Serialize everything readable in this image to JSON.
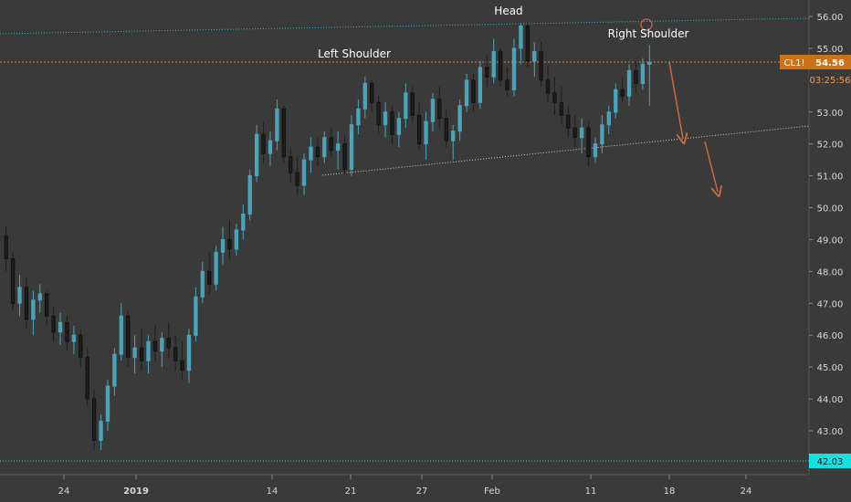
{
  "chart_data": {
    "type": "candlestick",
    "symbol_tag": "CL1!",
    "last_price": "54.56",
    "countdown": "03:25:56",
    "support_level": "42.03",
    "annotations": {
      "left_shoulder": "Left Shoulder",
      "head": "Head",
      "right_shoulder": "Right Shoulder"
    },
    "x_tick_labels": [
      "24",
      "2019",
      "14",
      "21",
      "27",
      "Feb",
      "11",
      "18",
      "24"
    ],
    "y_tick_labels": [
      "43.00",
      "44.00",
      "45.00",
      "46.00",
      "47.00",
      "48.00",
      "49.00",
      "50.00",
      "51.00",
      "52.00",
      "53.00",
      "54.00",
      "55.00",
      "56.00"
    ],
    "ylim": [
      41.9,
      56.5
    ],
    "grid": false,
    "colors": {
      "background": "#3a3a3a",
      "candle": "#4fa3b8",
      "price_line": "#d6843f",
      "price_tag": "#c8721a",
      "support_tag": "#19e0e0",
      "trend_line": "#33b9c4",
      "neckline": "#d0d0d0",
      "arrow": "#c86a44"
    },
    "candles": [
      [
        49.1,
        49.4,
        48.0,
        48.4
      ],
      [
        48.4,
        48.6,
        46.8,
        47.0
      ],
      [
        47.0,
        47.9,
        46.6,
        47.5
      ],
      [
        47.5,
        47.8,
        46.2,
        46.5
      ],
      [
        46.5,
        47.4,
        46.0,
        47.1
      ],
      [
        47.1,
        47.6,
        46.7,
        47.3
      ],
      [
        47.3,
        47.4,
        46.3,
        46.6
      ],
      [
        46.6,
        46.9,
        45.8,
        46.1
      ],
      [
        46.1,
        46.7,
        45.7,
        46.4
      ],
      [
        46.4,
        46.6,
        45.5,
        45.8
      ],
      [
        45.8,
        46.3,
        45.4,
        46.0
      ],
      [
        46.0,
        46.2,
        45.0,
        45.3
      ],
      [
        45.3,
        45.6,
        43.8,
        44.0
      ],
      [
        44.0,
        44.3,
        42.4,
        42.7
      ],
      [
        42.7,
        43.5,
        42.4,
        43.3
      ],
      [
        43.3,
        44.6,
        43.0,
        44.4
      ],
      [
        44.4,
        45.6,
        44.1,
        45.4
      ],
      [
        45.4,
        47.0,
        45.2,
        46.6
      ],
      [
        46.6,
        46.8,
        45.0,
        45.3
      ],
      [
        45.3,
        46.0,
        44.8,
        45.6
      ],
      [
        45.6,
        46.2,
        44.9,
        45.2
      ],
      [
        45.2,
        46.0,
        44.8,
        45.8
      ],
      [
        45.8,
        46.3,
        45.2,
        45.5
      ],
      [
        45.5,
        46.1,
        45.0,
        45.9
      ],
      [
        45.9,
        46.4,
        45.3,
        45.6
      ],
      [
        45.6,
        46.0,
        44.9,
        45.2
      ],
      [
        45.2,
        45.8,
        44.6,
        44.9
      ],
      [
        44.9,
        46.2,
        44.5,
        46.0
      ],
      [
        46.0,
        47.5,
        45.8,
        47.2
      ],
      [
        47.2,
        48.3,
        47.0,
        48.0
      ],
      [
        48.0,
        48.6,
        47.3,
        47.6
      ],
      [
        47.6,
        48.8,
        47.4,
        48.6
      ],
      [
        48.6,
        49.4,
        48.2,
        49.0
      ],
      [
        49.0,
        49.6,
        48.4,
        48.7
      ],
      [
        48.7,
        49.5,
        48.5,
        49.3
      ],
      [
        49.3,
        50.1,
        49.0,
        49.8
      ],
      [
        49.8,
        51.2,
        49.6,
        51.0
      ],
      [
        51.0,
        52.6,
        50.8,
        52.3
      ],
      [
        52.3,
        52.7,
        51.4,
        51.7
      ],
      [
        51.7,
        52.4,
        51.3,
        52.1
      ],
      [
        52.1,
        53.4,
        51.8,
        53.1
      ],
      [
        53.1,
        53.2,
        51.4,
        51.6
      ],
      [
        51.6,
        51.9,
        50.8,
        51.1
      ],
      [
        51.1,
        51.6,
        50.4,
        50.7
      ],
      [
        50.7,
        51.7,
        50.4,
        51.5
      ],
      [
        51.5,
        52.2,
        51.1,
        51.9
      ],
      [
        51.9,
        52.2,
        51.3,
        51.6
      ],
      [
        51.6,
        52.4,
        51.4,
        52.2
      ],
      [
        52.2,
        52.5,
        51.6,
        51.8
      ],
      [
        51.8,
        52.4,
        51.2,
        52.0
      ],
      [
        52.0,
        52.3,
        51.0,
        51.2
      ],
      [
        51.2,
        52.9,
        51.0,
        52.6
      ],
      [
        52.6,
        53.4,
        52.3,
        53.1
      ],
      [
        53.1,
        54.1,
        52.8,
        53.9
      ],
      [
        53.9,
        54.0,
        53.0,
        53.3
      ],
      [
        53.3,
        53.5,
        52.3,
        52.6
      ],
      [
        52.6,
        53.3,
        52.2,
        53.0
      ],
      [
        53.0,
        53.2,
        52.0,
        52.3
      ],
      [
        52.3,
        53.0,
        51.9,
        52.8
      ],
      [
        52.8,
        53.9,
        52.5,
        53.6
      ],
      [
        53.6,
        53.8,
        52.7,
        52.9
      ],
      [
        52.9,
        53.3,
        51.8,
        52.0
      ],
      [
        52.0,
        53.0,
        51.5,
        52.7
      ],
      [
        52.7,
        53.6,
        52.4,
        53.4
      ],
      [
        53.4,
        53.8,
        52.5,
        52.8
      ],
      [
        52.8,
        53.1,
        51.9,
        52.1
      ],
      [
        52.1,
        52.6,
        51.5,
        52.4
      ],
      [
        52.4,
        53.4,
        52.1,
        53.2
      ],
      [
        53.2,
        54.2,
        53.0,
        54.0
      ],
      [
        54.0,
        54.2,
        53.0,
        53.3
      ],
      [
        53.3,
        54.6,
        53.1,
        54.4
      ],
      [
        54.4,
        54.8,
        53.8,
        54.1
      ],
      [
        54.1,
        55.3,
        53.9,
        54.9
      ],
      [
        54.9,
        55.0,
        53.8,
        54.0
      ],
      [
        54.0,
        54.4,
        53.5,
        53.7
      ],
      [
        53.7,
        55.3,
        53.5,
        55.0
      ],
      [
        55.0,
        55.8,
        54.5,
        55.7
      ],
      [
        55.7,
        55.8,
        54.4,
        54.6
      ],
      [
        54.6,
        55.2,
        54.1,
        54.9
      ],
      [
        54.9,
        55.2,
        53.8,
        54.0
      ],
      [
        54.0,
        54.5,
        53.3,
        53.6
      ],
      [
        53.6,
        54.1,
        52.9,
        53.3
      ],
      [
        53.3,
        53.8,
        52.6,
        52.9
      ],
      [
        52.9,
        53.2,
        52.2,
        52.5
      ],
      [
        52.5,
        52.9,
        51.9,
        52.2
      ],
      [
        52.2,
        52.8,
        51.7,
        52.5
      ],
      [
        52.5,
        52.7,
        51.3,
        51.6
      ],
      [
        51.6,
        52.2,
        51.4,
        52.0
      ],
      [
        52.0,
        52.9,
        51.7,
        52.6
      ],
      [
        52.6,
        53.2,
        52.3,
        53.0
      ],
      [
        53.0,
        53.9,
        52.8,
        53.7
      ],
      [
        53.7,
        54.1,
        53.3,
        53.5
      ],
      [
        53.5,
        54.5,
        53.2,
        54.3
      ],
      [
        54.3,
        54.6,
        53.6,
        53.9
      ],
      [
        53.9,
        54.7,
        53.7,
        54.5
      ],
      [
        54.5,
        55.1,
        53.2,
        54.56
      ]
    ],
    "neckline": [
      [
        50.9,
        52.6
      ]
    ],
    "resistance_line": [
      [
        55.4,
        55.9
      ]
    ]
  }
}
